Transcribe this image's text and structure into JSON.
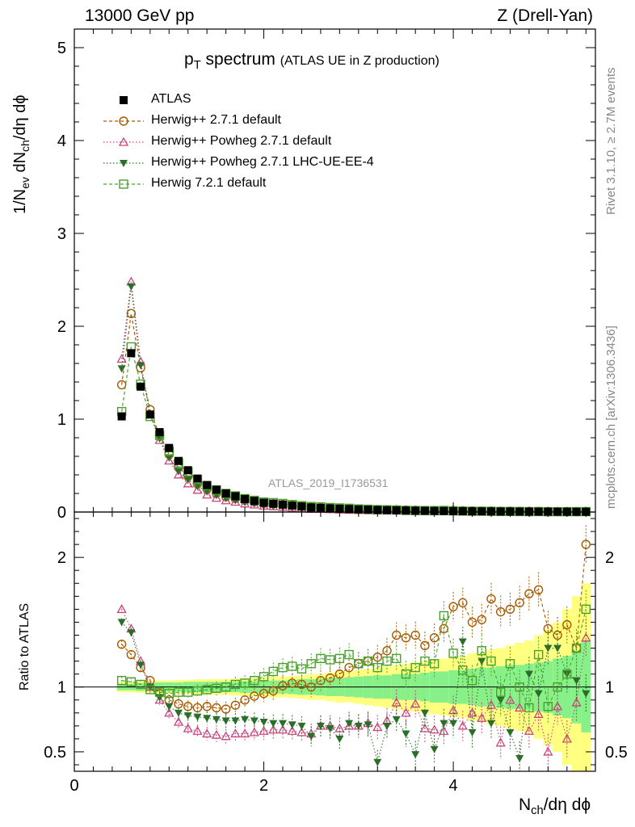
{
  "header": {
    "left": "13000 GeV pp",
    "right": "Z (Drell-Yan)"
  },
  "side_text": {
    "rivet": "Rivet 3.1.10, ≥ 2.7M events",
    "mcplots": "mcplots.cern.ch [arXiv:1306.3436]"
  },
  "chart_data": {
    "type": "scatter",
    "title_main": "spectrum",
    "title_sub": "(ATLAS UE in Z production)",
    "analysis_label": "ATLAS_2019_I1736531",
    "x_label": "dη dϕ",
    "y_label_main": "dN",
    "y_label_ratio": "Ratio to ATLAS",
    "xlim": [
      0,
      5.5
    ],
    "ylim_main": [
      0,
      5.2
    ],
    "ylim_ratio": [
      0.35,
      2.35
    ],
    "x_ticks": [
      "0",
      "2",
      "4"
    ],
    "y_ticks_main": [
      "0",
      "1",
      "2",
      "3",
      "4",
      "5"
    ],
    "y_ticks_ratio": [
      "0.5",
      "1",
      "2"
    ],
    "legend_placement": "top-left",
    "x": [
      0.5,
      0.6,
      0.7,
      0.8,
      0.9,
      1.0,
      1.1,
      1.2,
      1.3,
      1.4,
      1.5,
      1.6,
      1.7,
      1.8,
      1.9,
      2.0,
      2.1,
      2.2,
      2.3,
      2.4,
      2.5,
      2.6,
      2.7,
      2.8,
      2.9,
      3.0,
      3.1,
      3.2,
      3.3,
      3.4,
      3.5,
      3.6,
      3.7,
      3.8,
      3.9,
      4.0,
      4.1,
      4.2,
      4.3,
      4.4,
      4.5,
      4.6,
      4.7,
      4.8,
      4.9,
      5.0,
      5.1,
      5.2,
      5.3,
      5.4
    ],
    "atlas_values": [
      1.03,
      1.71,
      1.35,
      1.05,
      0.86,
      0.69,
      0.55,
      0.45,
      0.36,
      0.29,
      0.24,
      0.2,
      0.17,
      0.14,
      0.12,
      0.1,
      0.09,
      0.08,
      0.07,
      0.06,
      0.05,
      0.045,
      0.04,
      0.036,
      0.032,
      0.028,
      0.025,
      0.022,
      0.02,
      0.018,
      0.016,
      0.014,
      0.013,
      0.012,
      0.011,
      0.01,
      0.009,
      0.008,
      0.007,
      0.0065,
      0.006,
      0.0055,
      0.005,
      0.0046,
      0.0042,
      0.0038,
      0.0035,
      0.0032,
      0.003,
      0.0028
    ],
    "band_inner_half": [
      0.025,
      0.025,
      0.03,
      0.03,
      0.035,
      0.035,
      0.035,
      0.04,
      0.04,
      0.04,
      0.04,
      0.04,
      0.04,
      0.045,
      0.045,
      0.05,
      0.05,
      0.05,
      0.055,
      0.06,
      0.06,
      0.065,
      0.07,
      0.07,
      0.075,
      0.08,
      0.085,
      0.09,
      0.09,
      0.1,
      0.1,
      0.1,
      0.11,
      0.12,
      0.12,
      0.13,
      0.13,
      0.14,
      0.15,
      0.15,
      0.16,
      0.17,
      0.17,
      0.18,
      0.19,
      0.2,
      0.22,
      0.24,
      0.28,
      0.35
    ],
    "band_outer_half": [
      0.04,
      0.04,
      0.045,
      0.045,
      0.05,
      0.05,
      0.055,
      0.055,
      0.06,
      0.06,
      0.06,
      0.06,
      0.065,
      0.07,
      0.07,
      0.075,
      0.08,
      0.08,
      0.085,
      0.09,
      0.1,
      0.1,
      0.11,
      0.12,
      0.12,
      0.13,
      0.14,
      0.15,
      0.16,
      0.17,
      0.18,
      0.19,
      0.2,
      0.21,
      0.22,
      0.23,
      0.24,
      0.26,
      0.27,
      0.29,
      0.3,
      0.32,
      0.34,
      0.36,
      0.4,
      0.45,
      0.5,
      0.6,
      0.7,
      0.8
    ],
    "series": [
      {
        "name": "ATLAS",
        "color": "#000000",
        "marker": "square-filled"
      },
      {
        "name": "Herwig++ 2.7.1 default",
        "color": "#a65a00",
        "marker": "circle-open",
        "dash": "dashed",
        "ratio": [
          1.33,
          1.25,
          1.15,
          1.05,
          0.95,
          0.9,
          0.87,
          0.85,
          0.84,
          0.85,
          0.84,
          0.83,
          0.86,
          0.9,
          0.93,
          0.95,
          0.97,
          1.01,
          1.03,
          1.02,
          1.0,
          1.05,
          1.07,
          1.1,
          1.15,
          1.18,
          1.2,
          1.23,
          1.28,
          1.4,
          1.38,
          1.4,
          1.32,
          1.38,
          1.45,
          1.62,
          1.65,
          1.5,
          1.52,
          1.68,
          1.58,
          1.6,
          1.65,
          1.72,
          1.75,
          1.45,
          1.4,
          1.48,
          1.3,
          2.1
        ]
      },
      {
        "name": "Herwig++ Powheg 2.7.1 default",
        "color": "#c8467a",
        "marker": "triangle-open",
        "dash": "dotted",
        "ratio": [
          1.6,
          1.45,
          1.2,
          1.0,
          0.9,
          0.8,
          0.73,
          0.68,
          0.66,
          0.64,
          0.63,
          0.62,
          0.64,
          0.64,
          0.65,
          0.66,
          0.67,
          0.67,
          0.66,
          0.65,
          0.64,
          0.7,
          0.7,
          0.68,
          0.7,
          0.7,
          0.72,
          0.69,
          0.74,
          0.88,
          0.8,
          0.87,
          0.68,
          0.67,
          0.66,
          0.82,
          0.7,
          0.8,
          0.76,
          0.86,
          0.57,
          0.9,
          0.84,
          0.66,
          0.79,
          0.5,
          0.85,
          0.6,
          0.88,
          1.38
        ]
      },
      {
        "name": "Herwig++ Powheg 2.7.1 LHC-UE-EE-4",
        "color": "#2a6e2a",
        "marker": "triangle-down-filled",
        "dash": "dotted",
        "ratio": [
          1.5,
          1.42,
          1.17,
          1.0,
          0.92,
          0.85,
          0.8,
          0.78,
          0.77,
          0.76,
          0.75,
          0.74,
          0.74,
          0.75,
          0.74,
          0.73,
          0.72,
          0.72,
          0.71,
          0.7,
          0.62,
          0.7,
          0.68,
          0.6,
          0.72,
          0.7,
          0.71,
          0.42,
          0.7,
          0.75,
          0.64,
          0.48,
          0.8,
          0.52,
          0.72,
          0.72,
          1.35,
          0.65,
          1.2,
          0.72,
          0.9,
          0.65,
          0.45,
          1.1,
          0.95,
          1.3,
          1.3,
          1.1,
          1.05,
          0.95
        ]
      },
      {
        "name": "Herwig 7.2.1 default",
        "color": "#4aa02c",
        "marker": "square-open",
        "dash": "dashed",
        "ratio": [
          1.05,
          1.04,
          1.02,
          0.98,
          0.96,
          0.95,
          0.96,
          0.96,
          0.97,
          0.98,
          0.99,
          1.0,
          1.02,
          1.03,
          1.05,
          1.08,
          1.12,
          1.15,
          1.16,
          1.14,
          1.18,
          1.22,
          1.21,
          1.22,
          1.25,
          1.18,
          1.2,
          1.15,
          1.2,
          1.22,
          1.1,
          1.15,
          1.2,
          1.18,
          1.55,
          1.26,
          1.13,
          1.05,
          1.28,
          1.2,
          0.96,
          1.18,
          1.0,
          0.84,
          1.25,
          0.85,
          1.0,
          1.1,
          1.3,
          1.6
        ]
      }
    ]
  }
}
